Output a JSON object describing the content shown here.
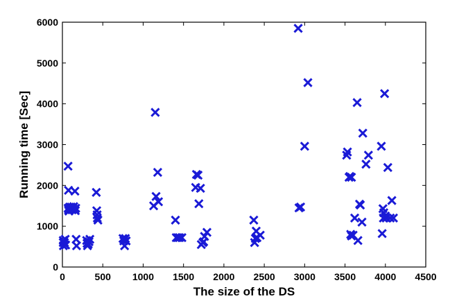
{
  "chart_data": {
    "type": "scatter",
    "title": "",
    "xlabel": "The size of the DS",
    "ylabel": "Running time [Sec]",
    "xlim": [
      0,
      4500
    ],
    "ylim": [
      0,
      6000
    ],
    "x_ticks": [
      0,
      500,
      1000,
      1500,
      2000,
      2500,
      3000,
      3500,
      4000,
      4500
    ],
    "y_ticks": [
      0,
      1000,
      2000,
      3000,
      4000,
      5000,
      6000
    ],
    "x_tick_labels": [
      "0",
      "500",
      "1000",
      "1500",
      "2000",
      "2500",
      "3000",
      "3500",
      "4000",
      "4500"
    ],
    "y_tick_labels": [
      "0",
      "1000",
      "2000",
      "3000",
      "4000",
      "5000",
      "6000"
    ],
    "grid": false,
    "marker": "x",
    "marker_color": "#1a1ad6",
    "series": [
      {
        "points": [
          [
            10,
            650
          ],
          [
            10,
            600
          ],
          [
            12,
            520
          ],
          [
            25,
            600
          ],
          [
            35,
            680
          ],
          [
            40,
            540
          ],
          [
            70,
            2470
          ],
          [
            75,
            1880
          ],
          [
            70,
            1440
          ],
          [
            75,
            1400
          ],
          [
            80,
            1370
          ],
          [
            90,
            1470
          ],
          [
            100,
            1430
          ],
          [
            110,
            1470
          ],
          [
            120,
            1400
          ],
          [
            130,
            1440
          ],
          [
            140,
            1480
          ],
          [
            150,
            1400
          ],
          [
            155,
            1860
          ],
          [
            160,
            1380
          ],
          [
            165,
            1440
          ],
          [
            170,
            680
          ],
          [
            175,
            520
          ],
          [
            300,
            650
          ],
          [
            305,
            580
          ],
          [
            310,
            520
          ],
          [
            320,
            560
          ],
          [
            330,
            620
          ],
          [
            340,
            680
          ],
          [
            420,
            1830
          ],
          [
            425,
            1380
          ],
          [
            430,
            1280
          ],
          [
            432,
            1200
          ],
          [
            440,
            1150
          ],
          [
            750,
            700
          ],
          [
            760,
            640
          ],
          [
            770,
            520
          ],
          [
            780,
            700
          ],
          [
            790,
            640
          ],
          [
            1130,
            1500
          ],
          [
            1150,
            3790
          ],
          [
            1160,
            1730
          ],
          [
            1180,
            2320
          ],
          [
            1190,
            1600
          ],
          [
            1400,
            1150
          ],
          [
            1410,
            720
          ],
          [
            1430,
            720
          ],
          [
            1450,
            720
          ],
          [
            1480,
            720
          ],
          [
            1650,
            1950
          ],
          [
            1660,
            2270
          ],
          [
            1680,
            2250
          ],
          [
            1690,
            1550
          ],
          [
            1710,
            1930
          ],
          [
            1720,
            550
          ],
          [
            1740,
            600
          ],
          [
            1750,
            620
          ],
          [
            1760,
            750
          ],
          [
            1790,
            850
          ],
          [
            2370,
            1150
          ],
          [
            2380,
            600
          ],
          [
            2390,
            700
          ],
          [
            2400,
            880
          ],
          [
            2410,
            720
          ],
          [
            2450,
            780
          ],
          [
            2920,
            5850
          ],
          [
            2930,
            1450
          ],
          [
            2950,
            1470
          ],
          [
            3000,
            2960
          ],
          [
            3040,
            4520
          ],
          [
            3520,
            2740
          ],
          [
            3530,
            2820
          ],
          [
            3550,
            2200
          ],
          [
            3560,
            2220
          ],
          [
            3580,
            2200
          ],
          [
            3570,
            800
          ],
          [
            3580,
            760
          ],
          [
            3600,
            780
          ],
          [
            3620,
            1200
          ],
          [
            3650,
            4030
          ],
          [
            3660,
            650
          ],
          [
            3680,
            1540
          ],
          [
            3690,
            1520
          ],
          [
            3710,
            1100
          ],
          [
            3720,
            3280
          ],
          [
            3760,
            2520
          ],
          [
            3790,
            2740
          ],
          [
            3950,
            2960
          ],
          [
            3960,
            820
          ],
          [
            3970,
            1430
          ],
          [
            3975,
            1200
          ],
          [
            3980,
            1330
          ],
          [
            3990,
            4250
          ],
          [
            4000,
            1250
          ],
          [
            4010,
            1200
          ],
          [
            4030,
            2440
          ],
          [
            4060,
            1200
          ],
          [
            4080,
            1630
          ],
          [
            4100,
            1200
          ]
        ]
      }
    ]
  }
}
